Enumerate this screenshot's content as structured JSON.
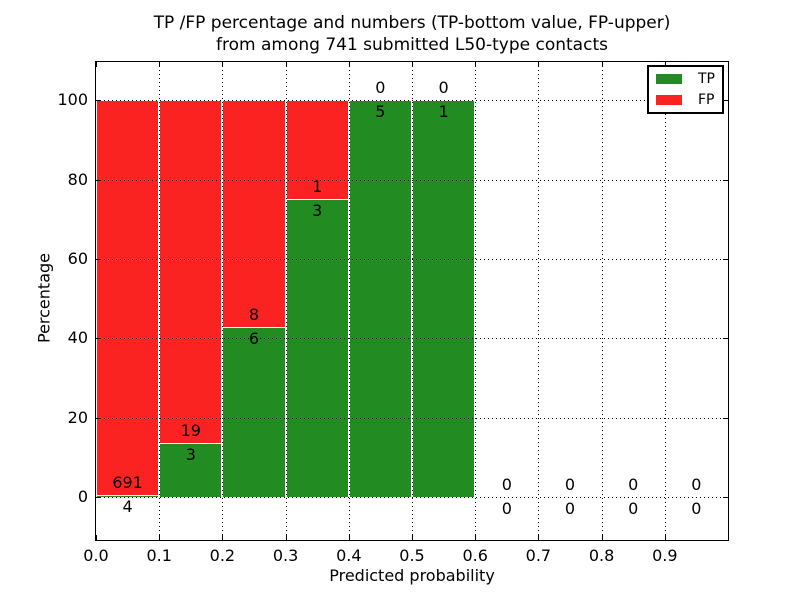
{
  "figure": {
    "title_line1": "TP /FP percentage and numbers (TP-bottom value, FP-upper)",
    "title_line2": "from among 741 submitted L50-type contacts"
  },
  "axes": {
    "xlabel": "Predicted probability",
    "ylabel": "Percentage",
    "xtick_values": [
      0.0,
      0.1,
      0.2,
      0.3,
      0.4,
      0.5,
      0.6,
      0.7,
      0.8,
      0.9
    ],
    "xtick_labels": [
      "0.0",
      "0.1",
      "0.2",
      "0.3",
      "0.4",
      "0.5",
      "0.6",
      "0.7",
      "0.8",
      "0.9"
    ],
    "ytick_values": [
      0,
      20,
      40,
      60,
      80,
      100
    ],
    "ytick_labels": [
      "0",
      "20",
      "40",
      "60",
      "80",
      "100"
    ],
    "xlim": [
      0.0,
      1.0
    ],
    "ylim": [
      -10.8,
      109.6
    ],
    "grid": true,
    "grid_linestyle": "dotted"
  },
  "legend": {
    "items": [
      {
        "label": "TP",
        "color": "#228b22"
      },
      {
        "label": "FP",
        "color": "#fb2222"
      }
    ],
    "position": "upper right"
  },
  "chart_data": {
    "type": "bar",
    "stacked": true,
    "orientation": "vertical",
    "title": "TP /FP percentage and numbers (TP-bottom value, FP-upper) from among 741 submitted L50-type contacts",
    "xlabel": "Predicted probability",
    "ylabel": "Percentage",
    "total_contacts": 741,
    "bin_edges": [
      0.0,
      0.1,
      0.2,
      0.3,
      0.4,
      0.5,
      0.6,
      0.7,
      0.8,
      0.9,
      1.0
    ],
    "series": [
      {
        "name": "TP",
        "color": "#228b22",
        "position": "bottom",
        "counts": [
          4,
          3,
          6,
          3,
          5,
          1,
          0,
          0,
          0,
          0
        ]
      },
      {
        "name": "FP",
        "color": "#fb2222",
        "position": "top",
        "counts": [
          691,
          19,
          8,
          1,
          0,
          0,
          0,
          0,
          0,
          0
        ]
      }
    ],
    "tp_percent_by_bin": [
      0.58,
      13.64,
      42.86,
      75.0,
      100.0,
      100.0,
      null,
      null,
      null,
      null
    ],
    "xlim": [
      0.0,
      1.0
    ],
    "ylim": [
      -10.8,
      109.6
    ],
    "grid": true,
    "legend_position": "upper right",
    "note_from_title": "bars show TP% (green, bottom) vs FP% (red, top) per bin; numbers are counts: TP below boundary, FP above"
  }
}
